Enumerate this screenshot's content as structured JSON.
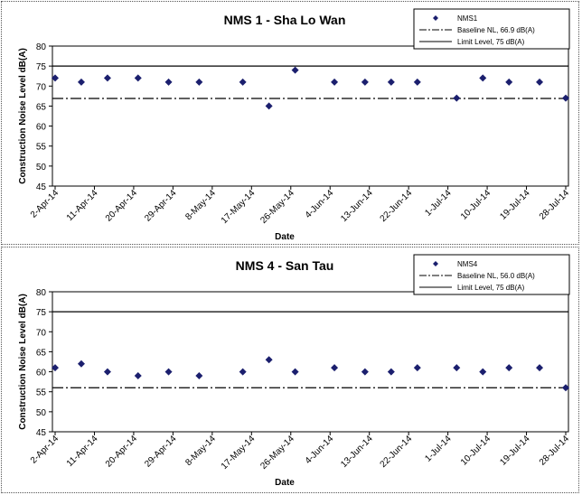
{
  "chart_data": [
    {
      "type": "scatter",
      "title": "NMS 1 - Sha Lo Wan",
      "xlabel": "Date",
      "ylabel": "Construction Noise Level  dB(A)",
      "ylim": [
        45,
        80
      ],
      "yticks": [
        "45",
        "50",
        "55",
        "60",
        "65",
        "70",
        "75",
        "80"
      ],
      "xticks": [
        "2-Apr-14",
        "11-Apr-14",
        "20-Apr-14",
        "29-Apr-14",
        "8-May-14",
        "17-May-14",
        "26-May-14",
        "4-Jun-14",
        "13-Jun-14",
        "22-Jun-14",
        "1-Jul-14",
        "10-Jul-14",
        "19-Jul-14",
        "28-Jul-14"
      ],
      "x_range_days": [
        0,
        117
      ],
      "marker_color": "#1b1f6e",
      "legend": {
        "placement": "top-right",
        "entries": [
          "NMS1",
          "Baseline NL, 66.9 dB(A)",
          "Limit Level, 75 dB(A)"
        ]
      },
      "lines": [
        {
          "name": "Baseline NL, 66.9 dB(A)",
          "y": 66.9,
          "style": "dash-dot"
        },
        {
          "name": "Limit Level, 75 dB(A)",
          "y": 75,
          "style": "solid"
        }
      ],
      "series": [
        {
          "name": "NMS1",
          "x": [
            "2-Apr-14",
            "8-Apr-14",
            "14-Apr-14",
            "21-Apr-14",
            "28-Apr-14",
            "5-May-14",
            "15-May-14",
            "21-May-14",
            "27-May-14",
            "5-Jun-14",
            "12-Jun-14",
            "18-Jun-14",
            "24-Jun-14",
            "3-Jul-14",
            "9-Jul-14",
            "15-Jul-14",
            "22-Jul-14",
            "28-Jul-14"
          ],
          "days": [
            0,
            6,
            12,
            19,
            26,
            33,
            43,
            49,
            55,
            64,
            71,
            77,
            83,
            92,
            98,
            104,
            111,
            117
          ],
          "values": [
            72,
            71,
            72,
            72,
            71,
            71,
            71,
            65,
            74,
            71,
            71,
            71,
            71,
            67,
            72,
            71,
            71,
            67
          ]
        }
      ]
    },
    {
      "type": "scatter",
      "title": "NMS 4 - San Tau",
      "xlabel": "Date",
      "ylabel": "Construction Noise Level  dB(A)",
      "ylim": [
        45,
        80
      ],
      "yticks": [
        "45",
        "50",
        "55",
        "60",
        "65",
        "70",
        "75",
        "80"
      ],
      "xticks": [
        "2-Apr-14",
        "11-Apr-14",
        "20-Apr-14",
        "29-Apr-14",
        "8-May-14",
        "17-May-14",
        "26-May-14",
        "4-Jun-14",
        "13-Jun-14",
        "22-Jun-14",
        "1-Jul-14",
        "10-Jul-14",
        "19-Jul-14",
        "28-Jul-14"
      ],
      "x_range_days": [
        0,
        117
      ],
      "marker_color": "#1b1f6e",
      "legend": {
        "placement": "top-right",
        "entries": [
          "NMS4",
          "Baseline NL, 56.0 dB(A)",
          "Limit Level, 75 dB(A)"
        ]
      },
      "lines": [
        {
          "name": "Baseline NL, 56.0 dB(A)",
          "y": 56.0,
          "style": "dash-dot"
        },
        {
          "name": "Limit Level, 75 dB(A)",
          "y": 75,
          "style": "solid"
        }
      ],
      "series": [
        {
          "name": "NMS4",
          "x": [
            "2-Apr-14",
            "8-Apr-14",
            "14-Apr-14",
            "21-Apr-14",
            "28-Apr-14",
            "5-May-14",
            "15-May-14",
            "21-May-14",
            "27-May-14",
            "5-Jun-14",
            "12-Jun-14",
            "18-Jun-14",
            "24-Jun-14",
            "3-Jul-14",
            "9-Jul-14",
            "15-Jul-14",
            "22-Jul-14",
            "28-Jul-14"
          ],
          "days": [
            0,
            6,
            12,
            19,
            26,
            33,
            43,
            49,
            55,
            64,
            71,
            77,
            83,
            92,
            98,
            104,
            111,
            117
          ],
          "values": [
            61,
            62,
            60,
            59,
            60,
            59,
            60,
            63,
            60,
            61,
            60,
            60,
            61,
            61,
            60,
            61,
            61,
            56
          ]
        }
      ]
    }
  ]
}
